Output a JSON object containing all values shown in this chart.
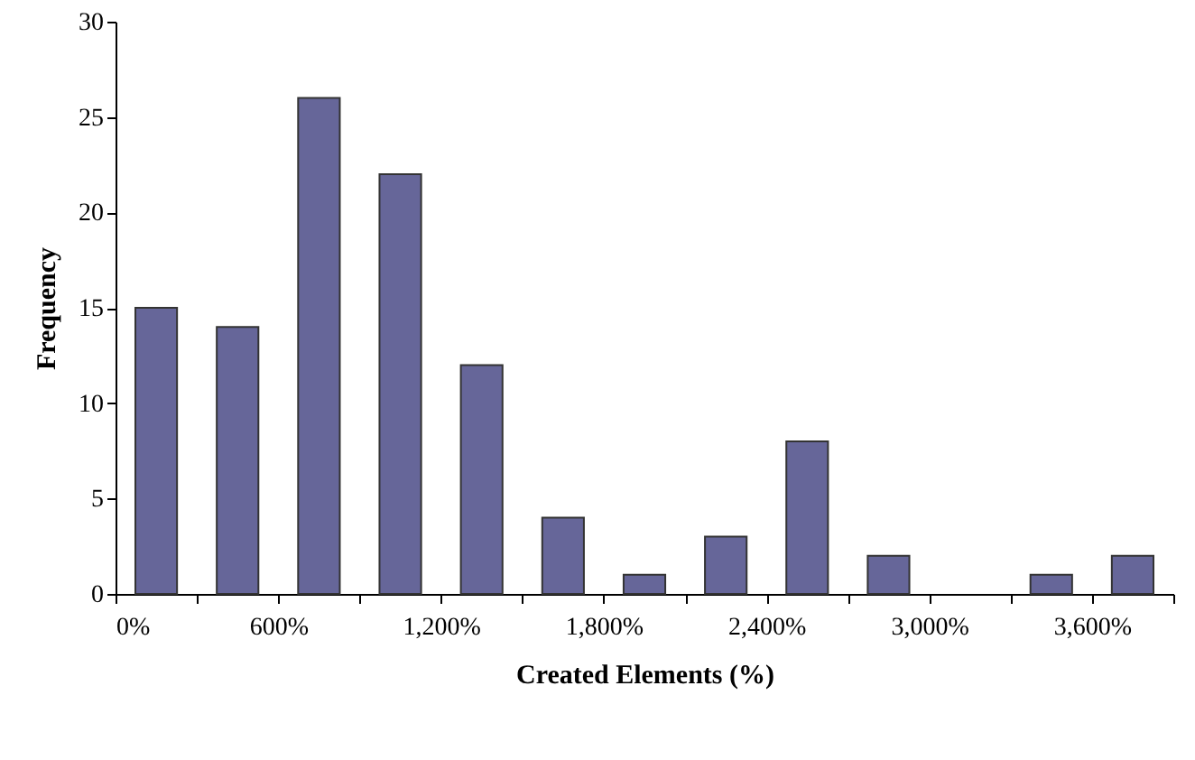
{
  "chart_data": {
    "type": "histogram",
    "xlabel": "Created Elements (%)",
    "ylabel": "Frequency",
    "bins": [
      0,
      300,
      600,
      900,
      1200,
      1500,
      1800,
      2100,
      2400,
      2700,
      3000,
      3300,
      3600,
      3900
    ],
    "values": [
      15,
      14,
      26,
      22,
      12,
      4,
      1,
      3,
      8,
      2,
      0,
      1,
      2
    ],
    "color": "#666699",
    "xlim": [
      0,
      3900
    ],
    "xticks": [
      {
        "value": 0,
        "label": "0%"
      },
      {
        "value": 300,
        "label": null
      },
      {
        "value": 600,
        "label": "600%"
      },
      {
        "value": 900,
        "label": null
      },
      {
        "value": 1200,
        "label": "1,200%"
      },
      {
        "value": 1500,
        "label": null
      },
      {
        "value": 1800,
        "label": "1,800%"
      },
      {
        "value": 2100,
        "label": null
      },
      {
        "value": 2400,
        "label": "2,400%"
      },
      {
        "value": 2700,
        "label": null
      },
      {
        "value": 3000,
        "label": "3,000%"
      },
      {
        "value": 3300,
        "label": null
      },
      {
        "value": 3600,
        "label": "3,600%"
      },
      {
        "value": 3900,
        "label": null
      }
    ],
    "ylim": [
      0,
      30
    ],
    "yticks": [
      0,
      5,
      10,
      15,
      20,
      25,
      30
    ],
    "grid": false
  }
}
